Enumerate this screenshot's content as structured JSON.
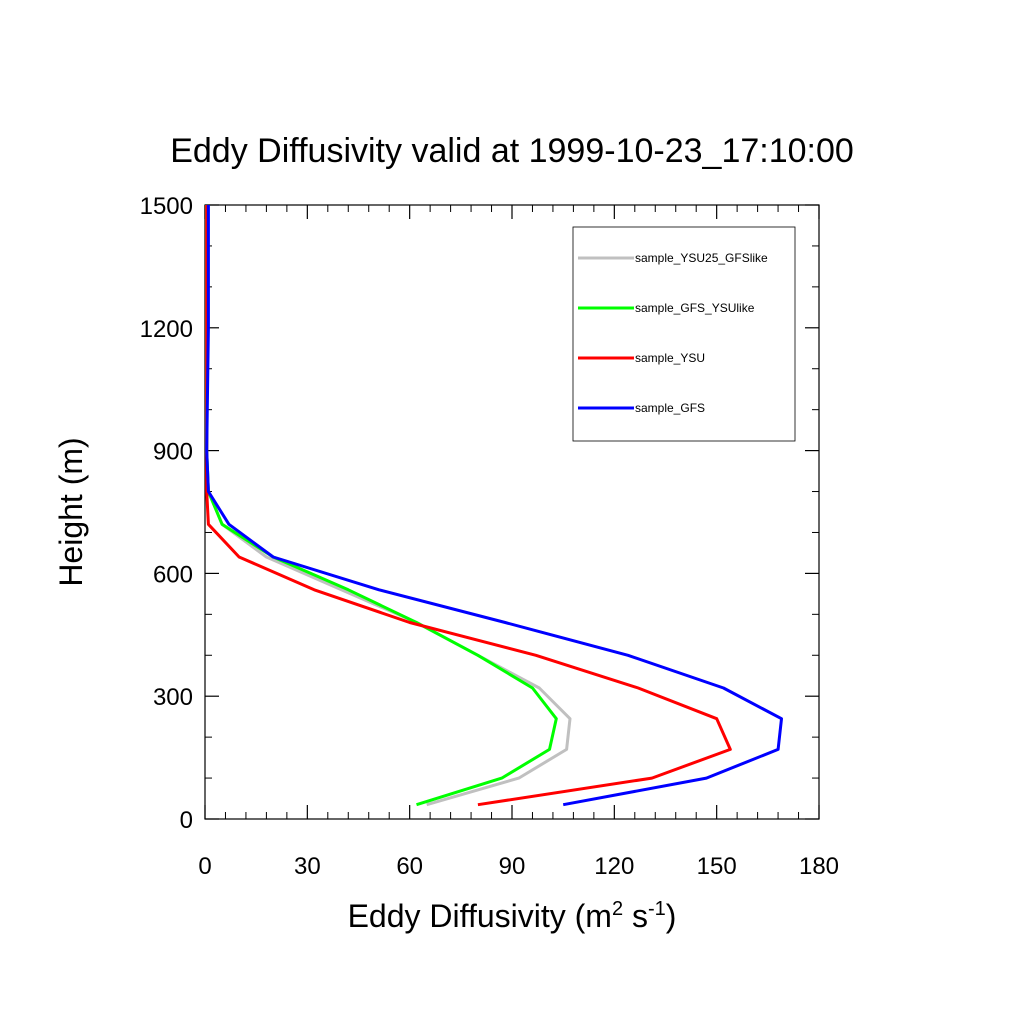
{
  "chart_data": {
    "type": "line",
    "title": "Eddy Diffusivity valid at 1999-10-23_17:10:00",
    "xlabel": "Eddy Diffusivity (m2 s-1)",
    "xlabel_parts": {
      "main": "Eddy Diffusivity (m",
      "sup1": "2",
      "mid": " s",
      "sup2": "-1",
      "end": ")"
    },
    "ylabel": "Height (m)",
    "xlim": [
      0,
      180
    ],
    "ylim": [
      0,
      1500
    ],
    "xticks": [
      "0",
      "30",
      "60",
      "90",
      "120",
      "150",
      "180"
    ],
    "yticks": [
      "0",
      "300",
      "600",
      "900",
      "1200",
      "1500"
    ],
    "legend_position": "top-right",
    "grid": false,
    "series": [
      {
        "name": "sample_YSU25_GFSlike",
        "color": "#c0c0c0",
        "x": [
          65,
          92,
          106,
          107,
          98,
          80,
          62,
          40,
          18,
          5,
          1,
          0.5,
          0.5,
          0.5
        ],
        "y": [
          35,
          100,
          170,
          245,
          320,
          400,
          480,
          560,
          640,
          720,
          800,
          900,
          1200,
          1500
        ]
      },
      {
        "name": "sample_GFS_YSUlike",
        "color": "#00ff00",
        "x": [
          62,
          87,
          101,
          103,
          96,
          80,
          62,
          42,
          20,
          5,
          1,
          0.5,
          0.5,
          0.5
        ],
        "y": [
          35,
          100,
          170,
          245,
          320,
          400,
          480,
          560,
          640,
          720,
          800,
          900,
          1200,
          1500
        ]
      },
      {
        "name": "sample_YSU",
        "color": "#ff0000",
        "x": [
          80,
          131,
          154,
          150,
          127,
          97,
          60,
          32,
          10,
          1,
          0.5,
          0.5,
          0.5,
          0.5
        ],
        "y": [
          35,
          100,
          170,
          245,
          320,
          400,
          480,
          560,
          640,
          720,
          800,
          900,
          1200,
          1500
        ]
      },
      {
        "name": "sample_GFS",
        "color": "#0000ff",
        "x": [
          105,
          147,
          168,
          169,
          152,
          124,
          88,
          51,
          20,
          7,
          1,
          0.5,
          1,
          1
        ],
        "y": [
          35,
          100,
          170,
          245,
          320,
          400,
          480,
          560,
          640,
          720,
          800,
          900,
          1200,
          1500
        ]
      }
    ]
  }
}
